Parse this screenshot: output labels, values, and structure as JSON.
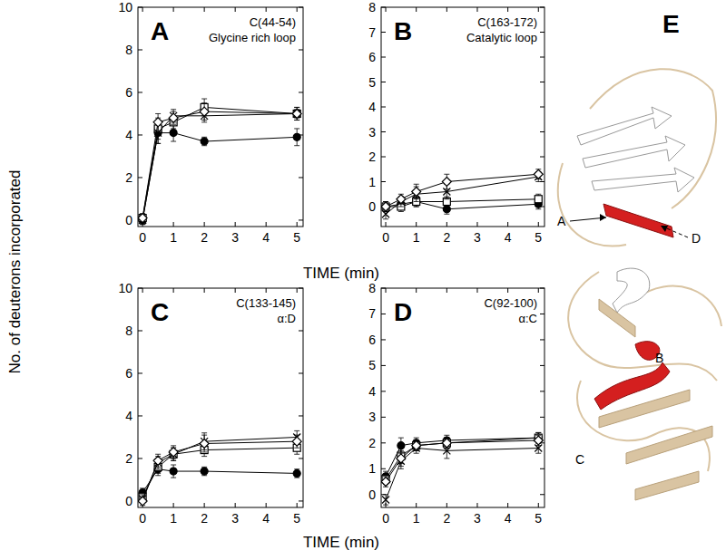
{
  "figure": {
    "y_label": "No. of deuterons incorporated",
    "x_labels": [
      "TIME (min)",
      "TIME (min)"
    ]
  },
  "structure": {
    "title": "E",
    "labels": [
      "A",
      "B",
      "C",
      "D"
    ]
  },
  "chart_data": [
    {
      "type": "line",
      "title": "A",
      "subtitle": "C(44-54)",
      "annotations": [
        "Glycine rich loop"
      ],
      "x": [
        0,
        0.5,
        1,
        2,
        5
      ],
      "xlim": [
        -0.15,
        5.2
      ],
      "xticks": [
        0,
        1,
        2,
        3,
        4,
        5
      ],
      "ylim": [
        -0.3,
        10
      ],
      "yticks": [
        0,
        2,
        4,
        6,
        8,
        10
      ],
      "series": [
        {
          "marker": "circle",
          "color": "#000000",
          "values": [
            0,
            4.1,
            4.1,
            3.7,
            3.9
          ],
          "errors": [
            0.2,
            0.5,
            0.4,
            0.2,
            0.4
          ]
        },
        {
          "marker": "square",
          "color": "#000000",
          "values": [
            0.1,
            4.3,
            4.6,
            5.3,
            5.0
          ],
          "errors": [
            0.2,
            0.5,
            0.3,
            0.4,
            0.3
          ]
        },
        {
          "marker": "x",
          "color": "#000000",
          "values": [
            0,
            4.1,
            4.9,
            4.9,
            5.0
          ],
          "errors": [
            0.2,
            0.5,
            0.3,
            0.3,
            0.2
          ]
        },
        {
          "marker": "diamond",
          "color": "#000000",
          "values": [
            0.1,
            4.6,
            4.8,
            5.1,
            5.0
          ],
          "errors": [
            0.2,
            0.4,
            0.3,
            0.4,
            0.3
          ]
        }
      ]
    },
    {
      "type": "line",
      "title": "B",
      "subtitle": "C(163-172)",
      "annotations": [
        "Catalytic loop"
      ],
      "x": [
        0,
        0.5,
        1,
        2,
        5
      ],
      "xlim": [
        -0.15,
        5.2
      ],
      "xticks": [
        0,
        1,
        2,
        3,
        4,
        5
      ],
      "ylim": [
        -0.8,
        8
      ],
      "yticks": [
        0,
        1,
        2,
        3,
        4,
        5,
        6,
        7,
        8
      ],
      "series": [
        {
          "marker": "circle",
          "color": "#000000",
          "values": [
            0,
            0.1,
            0.2,
            -0.1,
            0.1
          ],
          "errors": [
            0.2,
            0.2,
            0.2,
            0.2,
            0.2
          ]
        },
        {
          "marker": "square",
          "color": "#000000",
          "values": [
            0,
            0,
            0.2,
            0.2,
            0.3
          ],
          "errors": [
            0.2,
            0.2,
            0.2,
            0.2,
            0.2
          ]
        },
        {
          "marker": "x",
          "color": "#000000",
          "values": [
            -0.3,
            0.2,
            0.5,
            0.6,
            1.2
          ],
          "errors": [
            0.2,
            0.2,
            0.3,
            0.3,
            0.2
          ]
        },
        {
          "marker": "diamond",
          "color": "#000000",
          "values": [
            0,
            0.3,
            0.6,
            1.0,
            1.3
          ],
          "errors": [
            0.2,
            0.2,
            0.3,
            0.3,
            0.2
          ]
        }
      ]
    },
    {
      "type": "line",
      "title": "C",
      "subtitle": "C(133-145)",
      "annotations": [
        "α:D"
      ],
      "x": [
        0,
        0.5,
        1,
        2,
        5
      ],
      "xlim": [
        -0.15,
        5.2
      ],
      "xticks": [
        0,
        1,
        2,
        3,
        4,
        5
      ],
      "ylim": [
        -0.3,
        10
      ],
      "yticks": [
        0,
        2,
        4,
        6,
        8,
        10
      ],
      "series": [
        {
          "marker": "circle",
          "color": "#000000",
          "values": [
            0.4,
            1.5,
            1.4,
            1.4,
            1.3
          ],
          "errors": [
            0.2,
            0.3,
            0.3,
            0.2,
            0.2
          ]
        },
        {
          "marker": "square",
          "color": "#000000",
          "values": [
            0.2,
            1.6,
            2.2,
            2.4,
            2.5
          ],
          "errors": [
            0.2,
            0.3,
            0.3,
            0.3,
            0.3
          ]
        },
        {
          "marker": "x",
          "color": "#000000",
          "values": [
            0.1,
            1.8,
            2.2,
            2.8,
            3.0
          ],
          "errors": [
            0.2,
            0.3,
            0.3,
            0.4,
            0.3
          ]
        },
        {
          "marker": "diamond",
          "color": "#000000",
          "values": [
            0,
            1.9,
            2.3,
            2.7,
            2.8
          ],
          "errors": [
            0.2,
            0.3,
            0.3,
            0.4,
            0.3
          ]
        }
      ]
    },
    {
      "type": "line",
      "title": "D",
      "subtitle": "C(92-100)",
      "annotations": [
        "α:C"
      ],
      "x": [
        0,
        0.5,
        1,
        2,
        5
      ],
      "xlim": [
        -0.15,
        5.2
      ],
      "xticks": [
        0,
        1,
        2,
        3,
        4,
        5
      ],
      "ylim": [
        -0.5,
        8
      ],
      "yticks": [
        0,
        1,
        2,
        3,
        4,
        5,
        6,
        7,
        8
      ],
      "series": [
        {
          "marker": "circle",
          "color": "#000000",
          "values": [
            0.7,
            1.9,
            2.0,
            2.1,
            2.2
          ],
          "errors": [
            0.2,
            0.3,
            0.2,
            0.2,
            0.2
          ]
        },
        {
          "marker": "square",
          "color": "#000000",
          "values": [
            0.6,
            1.5,
            1.9,
            2.0,
            2.2
          ],
          "errors": [
            0.2,
            0.3,
            0.2,
            0.2,
            0.2
          ]
        },
        {
          "marker": "x",
          "color": "#000000",
          "values": [
            -0.2,
            1.3,
            1.8,
            1.7,
            1.8
          ],
          "errors": [
            0.2,
            0.3,
            0.2,
            0.3,
            0.2
          ]
        },
        {
          "marker": "diamond",
          "color": "#000000",
          "values": [
            0.5,
            1.4,
            1.9,
            2.0,
            2.1
          ],
          "errors": [
            0.2,
            0.3,
            0.2,
            0.2,
            0.2
          ]
        }
      ]
    }
  ]
}
